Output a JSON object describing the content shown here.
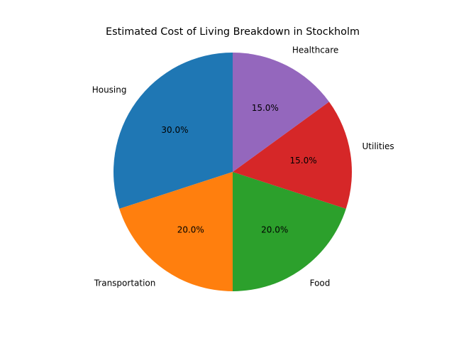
{
  "chart_data": {
    "type": "pie",
    "title": "Estimated Cost of Living Breakdown in Stockholm",
    "slices": [
      {
        "label": "Housing",
        "value": 30,
        "pct_label": "30.0%",
        "color": "#1f77b4"
      },
      {
        "label": "Transportation",
        "value": 20,
        "pct_label": "20.0%",
        "color": "#ff7f0e"
      },
      {
        "label": "Food",
        "value": 20,
        "pct_label": "20.0%",
        "color": "#2ca02c"
      },
      {
        "label": "Utilities",
        "value": 15,
        "pct_label": "15.0%",
        "color": "#d62728"
      },
      {
        "label": "Healthcare",
        "value": 15,
        "pct_label": "15.0%",
        "color": "#9467bd"
      }
    ],
    "start_angle_deg": 90,
    "direction": "counterclockwise",
    "legend": "none"
  }
}
